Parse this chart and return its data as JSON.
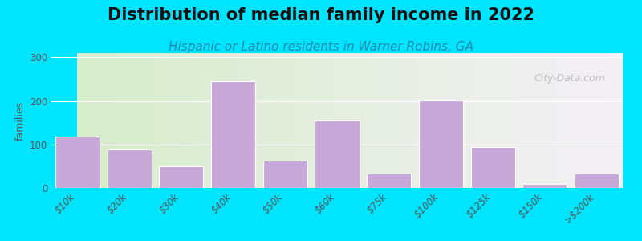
{
  "title": "Distribution of median family income in 2022",
  "subtitle": "Hispanic or Latino residents in Warner Robins, GA",
  "categories": [
    "$10k",
    "$20k",
    "$30k",
    "$40k",
    "$50k",
    "$60k",
    "$75k",
    "$100k",
    "$125k",
    "$150k",
    ">$200k"
  ],
  "values": [
    118,
    88,
    50,
    245,
    62,
    155,
    33,
    202,
    95,
    10,
    33
  ],
  "bar_color": "#c8a8d8",
  "bar_edge_color": "#ffffff",
  "background_outer": "#00e5ff",
  "background_plot_left": "#d8edcc",
  "background_plot_right": "#f5f0f8",
  "ylabel": "families",
  "ylim": [
    0,
    310
  ],
  "yticks": [
    0,
    100,
    200,
    300
  ],
  "title_fontsize": 15,
  "subtitle_fontsize": 11,
  "watermark": "City-Data.com"
}
